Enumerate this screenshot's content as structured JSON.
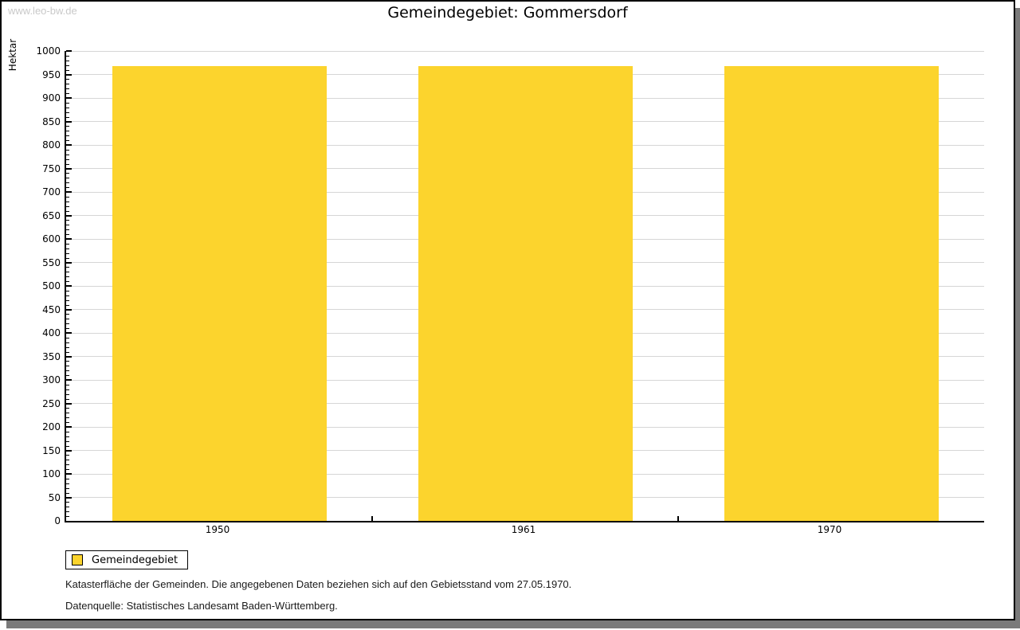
{
  "watermark": "www.leo-bw.de",
  "title": "Gemeindegebiet: Gommersdorf",
  "legend": {
    "label": "Gemeindegebiet"
  },
  "footer": {
    "line1": "Katasterfläche der Gemeinden. Die angegebenen Daten beziehen sich auf den Gebietsstand vom 27.05.1970.",
    "line2": "Datenquelle: Statistisches Landesamt Baden-Württemberg."
  },
  "chart_data": {
    "type": "bar",
    "title": "Gemeindegebiet: Gommersdorf",
    "categories": [
      "1950",
      "1961",
      "1970"
    ],
    "series": [
      {
        "name": "Gemeindegebiet",
        "values": [
          967,
          967,
          967
        ]
      }
    ],
    "xlabel": "",
    "ylabel": "Hektar",
    "ylim": [
      0,
      1000
    ],
    "ytick_major_step": 50,
    "ytick_minor_step": 10,
    "grid": true,
    "bar_color": "#fcd42d",
    "gridline_color": "#d6d6d6",
    "legend_position": "bottom-left",
    "source_note": "Datenquelle: Statistisches Landesamt Baden-Württemberg."
  }
}
